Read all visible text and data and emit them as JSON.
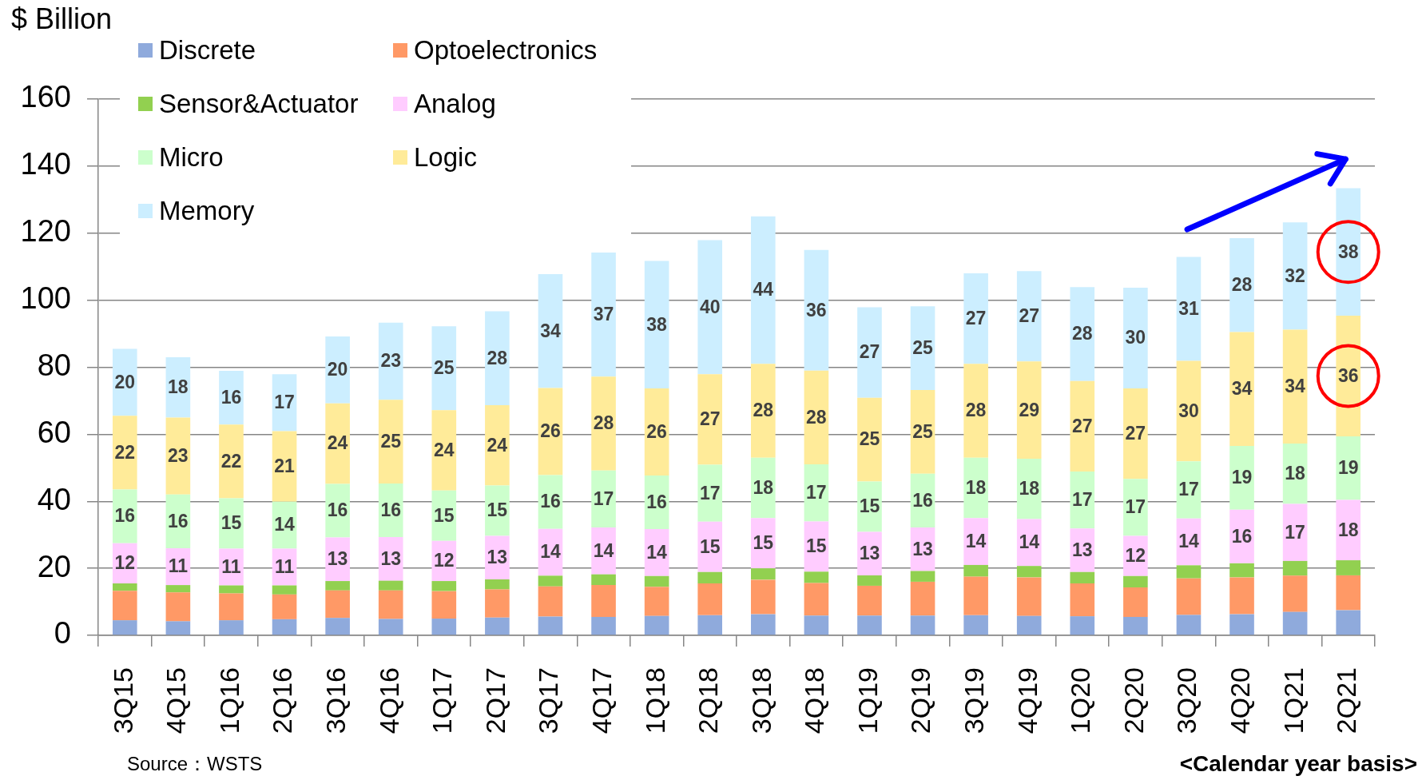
{
  "chart_data": {
    "type": "bar",
    "stacked": true,
    "ylabel": "$ Billion",
    "categories": [
      "3Q15",
      "4Q15",
      "1Q16",
      "2Q16",
      "3Q16",
      "4Q16",
      "1Q17",
      "2Q17",
      "3Q17",
      "4Q17",
      "1Q18",
      "2Q18",
      "3Q18",
      "4Q18",
      "1Q19",
      "2Q19",
      "3Q19",
      "4Q19",
      "1Q20",
      "2Q20",
      "3Q20",
      "4Q20",
      "1Q21",
      "2Q21"
    ],
    "series": [
      {
        "name": "Discrete",
        "color": "#8faadc",
        "values": [
          4.5,
          4.2,
          4.5,
          4.8,
          5.2,
          4.9,
          5.0,
          5.3,
          5.6,
          5.5,
          5.8,
          6.0,
          6.3,
          5.9,
          5.9,
          5.9,
          6.0,
          5.8,
          5.7,
          5.5,
          6.1,
          6.3,
          7.0,
          7.5
        ]
      },
      {
        "name": "Optoelectronics",
        "color": "#ff9966",
        "values": [
          8.8,
          8.6,
          8.0,
          7.4,
          8.2,
          8.5,
          8.2,
          8.4,
          9.0,
          9.5,
          8.7,
          9.5,
          10.3,
          9.7,
          8.9,
          10.1,
          11.5,
          11.5,
          9.8,
          8.8,
          10.9,
          11.0,
          10.8,
          10.4
        ]
      },
      {
        "name": "Sensor&Actuator",
        "color": "#92d050",
        "values": [
          2.2,
          2.2,
          2.4,
          2.7,
          2.8,
          2.9,
          3.0,
          3.0,
          3.2,
          3.2,
          3.2,
          3.4,
          3.4,
          3.4,
          3.1,
          3.2,
          3.5,
          3.4,
          3.4,
          3.4,
          3.9,
          4.2,
          4.4,
          4.5
        ]
      },
      {
        "name": "Analog",
        "color": "#ffccff",
        "values": [
          12,
          11,
          11,
          11,
          13,
          13,
          12,
          13,
          14,
          14,
          14,
          15,
          15,
          15,
          13,
          13,
          14,
          14,
          13,
          12,
          14,
          16,
          17,
          18
        ],
        "value_labels": [
          "12",
          "11",
          "11",
          "11",
          "13",
          "13",
          "12",
          "13",
          "14",
          "14",
          "14",
          "15",
          "15",
          "15",
          "13",
          "13",
          "14",
          "14",
          "13",
          "12",
          "14",
          "16",
          "17",
          "18"
        ]
      },
      {
        "name": "Micro",
        "color": "#ccffcc",
        "values": [
          16,
          16,
          15,
          14,
          16,
          16,
          15,
          15,
          16,
          17,
          16,
          17,
          18,
          17,
          15,
          16,
          18,
          18,
          17,
          17,
          17,
          19,
          18,
          19
        ],
        "value_labels": [
          "16",
          "16",
          "15",
          "14",
          "16",
          "16",
          "15",
          "15",
          "16",
          "17",
          "16",
          "17",
          "18",
          "17",
          "15",
          "16",
          "18",
          "18",
          "17",
          "17",
          "17",
          "19",
          "18",
          "19"
        ]
      },
      {
        "name": "Logic",
        "color": "#ffeb99",
        "values": [
          22,
          23,
          22,
          21,
          24,
          25,
          24,
          24,
          26,
          28,
          26,
          27,
          28,
          28,
          25,
          25,
          28,
          29,
          27,
          27,
          30,
          34,
          34,
          36
        ],
        "value_labels": [
          "22",
          "23",
          "22",
          "21",
          "24",
          "25",
          "24",
          "24",
          "26",
          "28",
          "26",
          "27",
          "28",
          "28",
          "25",
          "25",
          "28",
          "29",
          "27",
          "27",
          "30",
          "34",
          "34",
          "36"
        ]
      },
      {
        "name": "Memory",
        "color": "#cceeff",
        "values": [
          20,
          18,
          16,
          17,
          20,
          23,
          25,
          28,
          34,
          37,
          38,
          40,
          44,
          36,
          27,
          25,
          27,
          27,
          28,
          30,
          31,
          28,
          32,
          38
        ],
        "value_labels": [
          "20",
          "18",
          "16",
          "17",
          "20",
          "23",
          "25",
          "28",
          "34",
          "37",
          "38",
          "40",
          "44",
          "36",
          "27",
          "25",
          "27",
          "27",
          "28",
          "30",
          "31",
          "28",
          "32",
          "38"
        ]
      }
    ],
    "ylim": [
      0,
      160
    ],
    "yticks": [
      0,
      20,
      40,
      60,
      80,
      100,
      120,
      140,
      160
    ],
    "grid": "y",
    "legend": "top left",
    "annotations": [
      "Source：WSTS",
      "<Calendar year basis>"
    ]
  }
}
